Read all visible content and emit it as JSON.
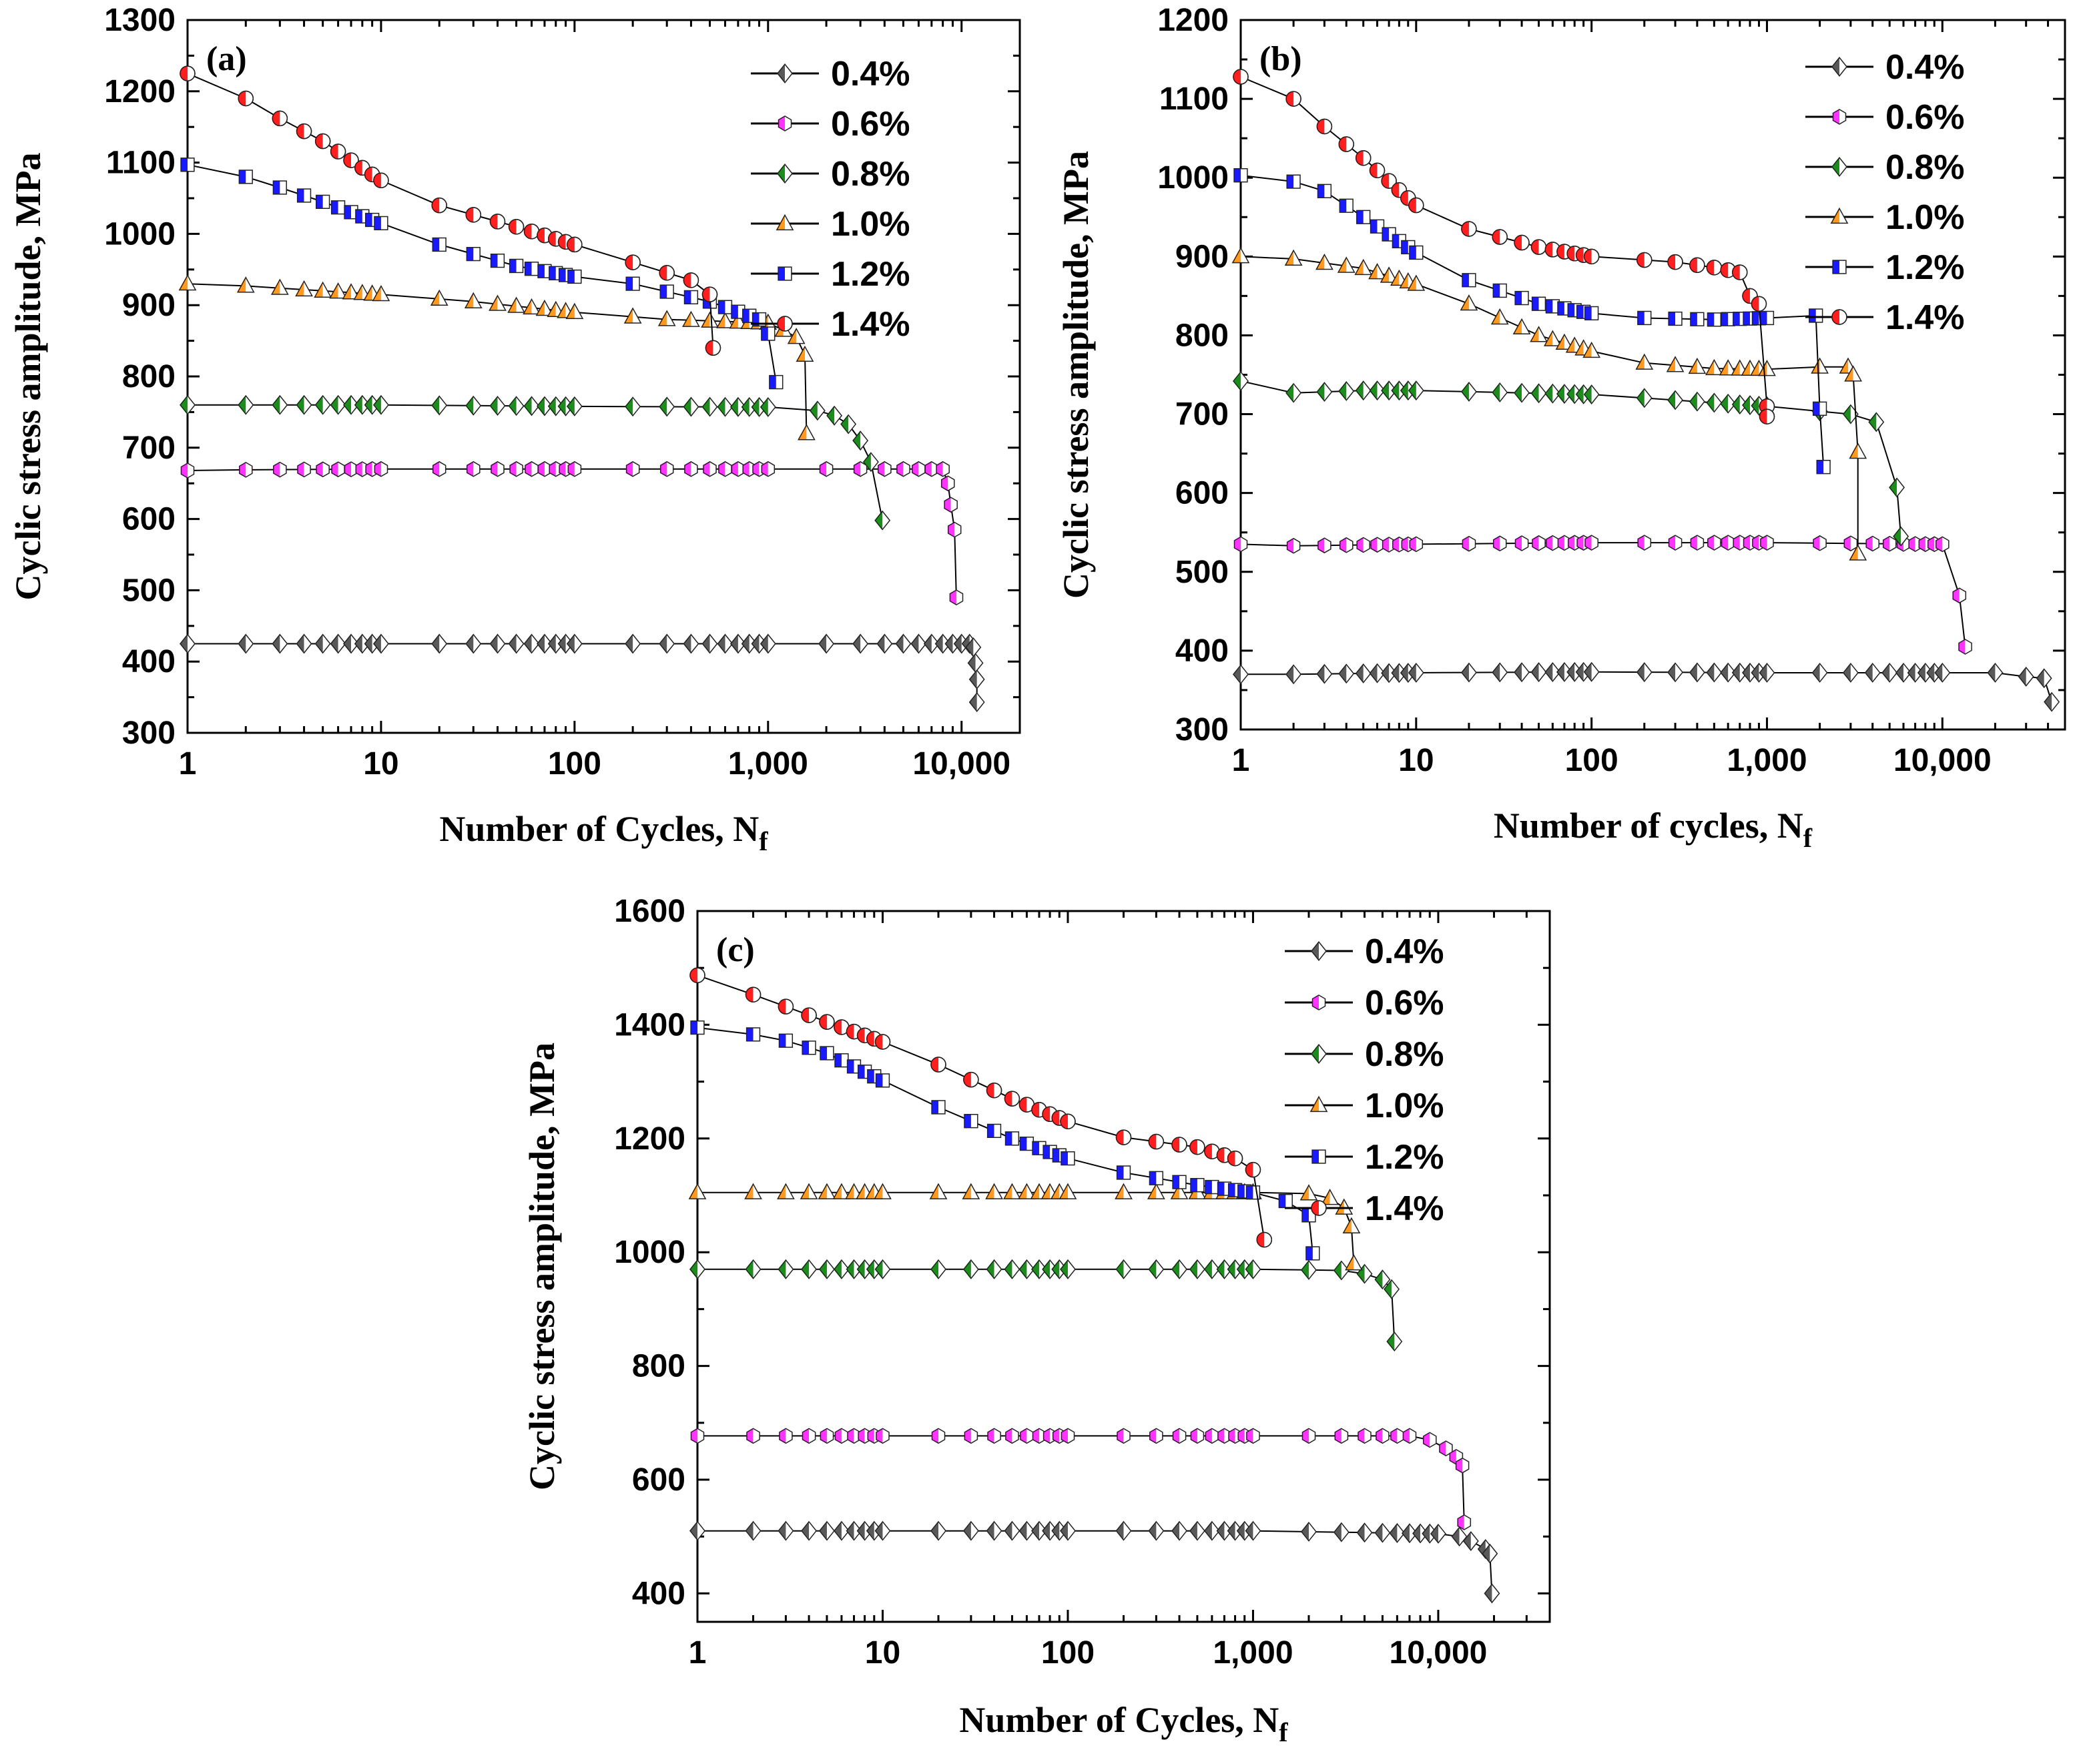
{
  "figure": {
    "colors": {
      "0.4%": "#595959",
      "0.6%": "#ff33ff",
      "0.8%": "#1c8c1c",
      "1.0%": "#ff9a1f",
      "1.2%": "#1a1aff",
      "1.4%": "#ff1f1f"
    },
    "marker_shapes": {
      "0.4%": "diamond",
      "0.6%": "hexagon",
      "0.8%": "diamond",
      "1.0%": "triangle",
      "1.2%": "square",
      "1.4%": "circle"
    }
  },
  "chart_data": [
    {
      "type": "scatter",
      "panel_label": "(a)",
      "xlabel": "Number of Cycles, N",
      "xlabel_sub": "f",
      "ylabel": "Cyclic stress amplitude, MPa",
      "xscale": "log",
      "xlim": [
        1,
        20000
      ],
      "ylim": [
        300,
        1300
      ],
      "xticks": [
        1,
        10,
        100,
        1000,
        10000
      ],
      "xtick_labels": [
        "1",
        "10",
        "100",
        "1,000",
        "10,000"
      ],
      "yticks": [
        300,
        400,
        500,
        600,
        700,
        800,
        900,
        1000,
        1100,
        1200,
        1300
      ],
      "ytick_labels": [
        "300",
        "400",
        "500",
        "600",
        "700",
        "800",
        "900",
        "1000",
        "1100",
        "1200",
        "1300"
      ],
      "legend_position": "top-right",
      "series": [
        {
          "name": "0.4%",
          "flat": [
            [
              1,
              425
            ],
            [
              11000,
              425
            ]
          ],
          "tail": [
            [
              11500,
              420
            ],
            [
              11800,
              398
            ],
            [
              12000,
              375
            ],
            [
              12000,
              343
            ]
          ]
        },
        {
          "name": "0.6%",
          "flat": [
            [
              1,
              668
            ],
            [
              2,
              669
            ],
            [
              10,
              670
            ],
            [
              100,
              670
            ],
            [
              1000,
              670
            ],
            [
              8000,
              670
            ]
          ],
          "tail": [
            [
              8500,
              650
            ],
            [
              8800,
              620
            ],
            [
              9200,
              585
            ],
            [
              9400,
              490
            ]
          ]
        },
        {
          "name": "0.8%",
          "flat": [
            [
              1,
              760
            ],
            [
              10,
              760
            ],
            [
              100,
              758
            ],
            [
              1000,
              757
            ],
            [
              1800,
              752
            ]
          ],
          "tail": [
            [
              2200,
              745
            ],
            [
              2600,
              733
            ],
            [
              3000,
              710
            ],
            [
              3400,
              680
            ],
            [
              3900,
              598
            ]
          ]
        },
        {
          "name": "1.0%",
          "flat": [
            [
              1,
              930
            ],
            [
              2,
              927
            ],
            [
              5,
              920
            ],
            [
              10,
              915
            ],
            [
              30,
              905
            ],
            [
              100,
              890
            ],
            [
              300,
              880
            ],
            [
              1000,
              875
            ],
            [
              1200,
              865
            ]
          ],
          "tail": [
            [
              1400,
              855
            ],
            [
              1550,
              830
            ],
            [
              1580,
              720
            ]
          ]
        },
        {
          "name": "1.2%",
          "flat": [
            [
              1,
              1097
            ],
            [
              2,
              1080
            ],
            [
              3,
              1065
            ],
            [
              5,
              1045
            ],
            [
              10,
              1015
            ],
            [
              20,
              985
            ],
            [
              50,
              955
            ],
            [
              100,
              940
            ],
            [
              200,
              930
            ],
            [
              500,
              905
            ],
            [
              900,
              880
            ]
          ],
          "tail": [
            [
              1000,
              860
            ],
            [
              1100,
              792
            ]
          ]
        },
        {
          "name": "1.4%",
          "flat": [
            [
              1,
              1225
            ],
            [
              2,
              1190
            ],
            [
              3,
              1162
            ],
            [
              5,
              1130
            ],
            [
              10,
              1075
            ],
            [
              20,
              1040
            ],
            [
              50,
              1010
            ],
            [
              100,
              985
            ],
            [
              200,
              960
            ],
            [
              400,
              935
            ]
          ],
          "tail": [
            [
              500,
              915
            ],
            [
              520,
              840
            ]
          ]
        }
      ]
    },
    {
      "type": "scatter",
      "panel_label": "(b)",
      "xlabel": "Number of cycles, N",
      "xlabel_sub": "f",
      "ylabel": "Cyclic stress amplitude, MPa",
      "xscale": "log",
      "xlim": [
        1,
        50000
      ],
      "ylim": [
        300,
        1200
      ],
      "xticks": [
        1,
        10,
        100,
        1000,
        10000
      ],
      "xtick_labels": [
        "1",
        "10",
        "100",
        "1,000",
        "10,000"
      ],
      "yticks": [
        300,
        400,
        500,
        600,
        700,
        800,
        900,
        1000,
        1100,
        1200
      ],
      "ytick_labels": [
        "300",
        "400",
        "500",
        "600",
        "700",
        "800",
        "900",
        "1000",
        "1100",
        "1200"
      ],
      "legend_position": "top-right",
      "series": [
        {
          "name": "0.4%",
          "flat": [
            [
              1,
              370
            ],
            [
              2,
              370
            ],
            [
              10,
              372
            ],
            [
              100,
              373
            ],
            [
              1000,
              372
            ],
            [
              20000,
              372
            ]
          ],
          "tail": [
            [
              30000,
              367
            ],
            [
              38000,
              365
            ],
            [
              42000,
              335
            ]
          ]
        },
        {
          "name": "0.6%",
          "flat": [
            [
              1,
              535
            ],
            [
              2,
              533
            ],
            [
              10,
              535
            ],
            [
              100,
              537
            ],
            [
              1000,
              537
            ],
            [
              10000,
              535
            ]
          ],
          "tail": [
            [
              12500,
              470
            ],
            [
              13500,
              405
            ]
          ]
        },
        {
          "name": "0.8%",
          "flat": [
            [
              1,
              742
            ],
            [
              2,
              727
            ],
            [
              5,
              730
            ],
            [
              10,
              730
            ],
            [
              100,
              725
            ],
            [
              1000,
              710
            ],
            [
              3000,
              700
            ]
          ],
          "tail": [
            [
              4200,
              690
            ],
            [
              5500,
              607
            ],
            [
              5800,
              545
            ]
          ]
        },
        {
          "name": "1.0%",
          "flat": [
            [
              1,
              900
            ],
            [
              2,
              897
            ],
            [
              5,
              885
            ],
            [
              10,
              865
            ],
            [
              20,
              840
            ],
            [
              50,
              800
            ],
            [
              100,
              780
            ],
            [
              200,
              765
            ],
            [
              500,
              758
            ],
            [
              1000,
              757
            ],
            [
              2000,
              760
            ],
            [
              2900,
              760
            ]
          ],
          "tail": [
            [
              3100,
              750
            ],
            [
              3300,
              652
            ],
            [
              3300,
              523
            ]
          ]
        },
        {
          "name": "1.2%",
          "flat": [
            [
              1,
              1003
            ],
            [
              2,
              995
            ],
            [
              3,
              983
            ],
            [
              5,
              950
            ],
            [
              10,
              905
            ],
            [
              20,
              870
            ],
            [
              50,
              840
            ],
            [
              100,
              828
            ],
            [
              200,
              822
            ],
            [
              500,
              820
            ],
            [
              1000,
              822
            ],
            [
              1500,
              828
            ],
            [
              1900,
              825
            ]
          ],
          "tail": [
            [
              2000,
              707
            ],
            [
              2100,
              633
            ]
          ]
        },
        {
          "name": "1.4%",
          "flat": [
            [
              1,
              1128
            ],
            [
              2,
              1100
            ],
            [
              3,
              1065
            ],
            [
              5,
              1025
            ],
            [
              10,
              965
            ],
            [
              20,
              935
            ],
            [
              50,
              912
            ],
            [
              100,
              900
            ],
            [
              300,
              893
            ],
            [
              500,
              886
            ],
            [
              700,
              880
            ]
          ],
          "tail": [
            [
              800,
              850
            ],
            [
              900,
              840
            ],
            [
              1000,
              710
            ],
            [
              1000,
              697
            ]
          ]
        }
      ]
    },
    {
      "type": "scatter",
      "panel_label": "(c)",
      "xlabel": "Number of Cycles, N",
      "xlabel_sub": "f",
      "ylabel": "Cyclic stress amplitude, MPa",
      "xscale": "log",
      "xlim": [
        1,
        40000
      ],
      "ylim": [
        350,
        1600
      ],
      "xticks": [
        1,
        10,
        100,
        1000,
        10000
      ],
      "xtick_labels": [
        "1",
        "10",
        "100",
        "1,000",
        "10,000"
      ],
      "yticks": [
        400,
        600,
        800,
        1000,
        1200,
        1400,
        1600
      ],
      "ytick_labels": [
        "400",
        "600",
        "800",
        "1000",
        "1200",
        "1400",
        "1600"
      ],
      "legend_position": "top-right",
      "series": [
        {
          "name": "0.4%",
          "flat": [
            [
              1,
              510
            ],
            [
              10,
              510
            ],
            [
              100,
              510
            ],
            [
              1000,
              510
            ],
            [
              10000,
              505
            ]
          ],
          "tail": [
            [
              13000,
              500
            ],
            [
              15000,
              492
            ],
            [
              18000,
              478
            ],
            [
              19000,
              470
            ],
            [
              19500,
              400
            ]
          ]
        },
        {
          "name": "0.6%",
          "flat": [
            [
              1,
              677
            ],
            [
              10,
              677
            ],
            [
              100,
              677
            ],
            [
              1000,
              677
            ],
            [
              7000,
              677
            ]
          ],
          "tail": [
            [
              9000,
              670
            ],
            [
              11000,
              655
            ],
            [
              12500,
              640
            ],
            [
              13500,
              625
            ],
            [
              13800,
              525
            ]
          ]
        },
        {
          "name": "0.8%",
          "flat": [
            [
              1,
              970
            ],
            [
              10,
              970
            ],
            [
              100,
              970
            ],
            [
              1000,
              970
            ],
            [
              3000,
              968
            ]
          ],
          "tail": [
            [
              4000,
              962
            ],
            [
              5000,
              952
            ],
            [
              5600,
              935
            ],
            [
              5800,
              843
            ]
          ]
        },
        {
          "name": "1.0%",
          "flat": [
            [
              1,
              1105
            ],
            [
              10,
              1105
            ],
            [
              100,
              1105
            ],
            [
              1000,
              1105
            ],
            [
              2000,
              1103
            ]
          ],
          "tail": [
            [
              2600,
              1095
            ],
            [
              3100,
              1078
            ],
            [
              3400,
              1045
            ],
            [
              3500,
              980
            ]
          ]
        },
        {
          "name": "1.2%",
          "flat": [
            [
              1,
              1395
            ],
            [
              2,
              1383
            ],
            [
              3,
              1372
            ],
            [
              5,
              1350
            ],
            [
              10,
              1302
            ],
            [
              20,
              1255
            ],
            [
              50,
              1200
            ],
            [
              100,
              1165
            ],
            [
              200,
              1140
            ],
            [
              500,
              1118
            ],
            [
              1000,
              1105
            ],
            [
              1500,
              1090
            ]
          ],
          "tail": [
            [
              2000,
              1065
            ],
            [
              2100,
              998
            ]
          ]
        },
        {
          "name": "1.4%",
          "flat": [
            [
              1,
              1487
            ],
            [
              2,
              1453
            ],
            [
              3,
              1432
            ],
            [
              5,
              1405
            ],
            [
              10,
              1370
            ],
            [
              20,
              1330
            ],
            [
              50,
              1270
            ],
            [
              100,
              1230
            ],
            [
              200,
              1202
            ],
            [
              500,
              1185
            ],
            [
              800,
              1165
            ]
          ],
          "tail": [
            [
              1000,
              1145
            ],
            [
              1150,
              1022
            ]
          ]
        }
      ]
    }
  ]
}
